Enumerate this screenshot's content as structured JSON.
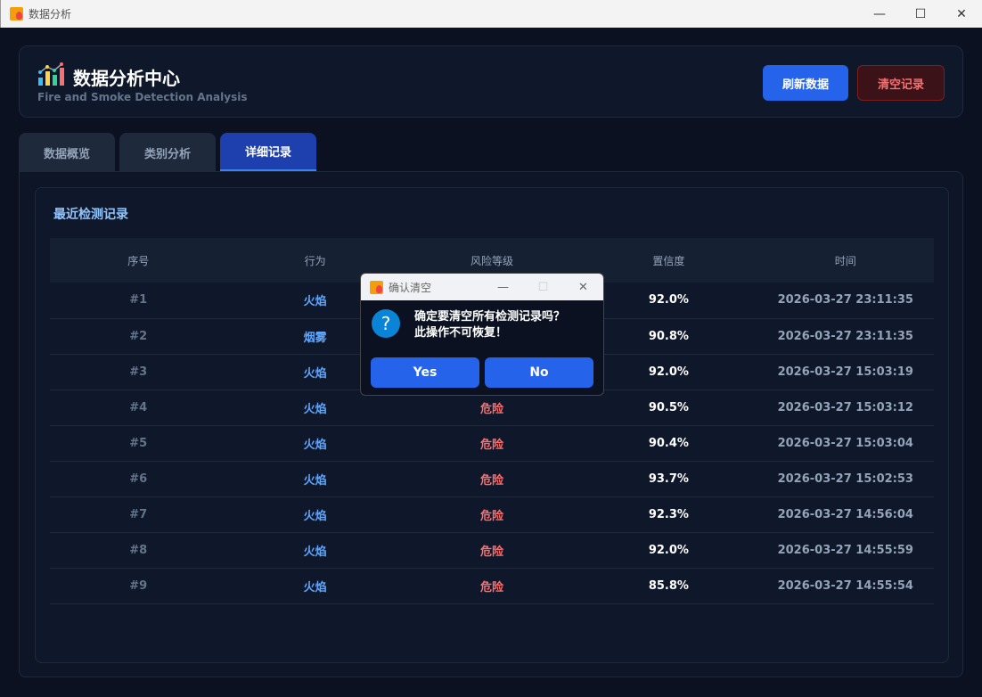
{
  "window": {
    "title": "数据分析",
    "minimize": "—",
    "maximize": "☐",
    "close": "✕"
  },
  "header": {
    "title": "数据分析中心",
    "subtitle": "Fire and Smoke Detection Analysis",
    "refresh_label": "刷新数据",
    "clear_label": "清空记录"
  },
  "tabs": [
    {
      "label": "数据概览"
    },
    {
      "label": "类别分析"
    },
    {
      "label": "详细记录",
      "active": true
    }
  ],
  "records": {
    "title": "最近检测记录",
    "columns": [
      "序号",
      "行为",
      "风险等级",
      "置信度",
      "时间"
    ],
    "rows": [
      [
        "#1",
        "火焰",
        "",
        "92.0%",
        "2026-03-27 23:11:35"
      ],
      [
        "#2",
        "烟雾",
        "",
        "90.8%",
        "2026-03-27 23:11:35"
      ],
      [
        "#3",
        "火焰",
        "",
        "92.0%",
        "2026-03-27 15:03:19"
      ],
      [
        "#4",
        "火焰",
        "危险",
        "90.5%",
        "2026-03-27 15:03:12"
      ],
      [
        "#5",
        "火焰",
        "危险",
        "90.4%",
        "2026-03-27 15:03:04"
      ],
      [
        "#6",
        "火焰",
        "危险",
        "93.7%",
        "2026-03-27 15:02:53"
      ],
      [
        "#7",
        "火焰",
        "危险",
        "92.3%",
        "2026-03-27 14:56:04"
      ],
      [
        "#8",
        "火焰",
        "危险",
        "92.0%",
        "2026-03-27 14:55:59"
      ],
      [
        "#9",
        "火焰",
        "危险",
        "85.8%",
        "2026-03-27 14:55:54"
      ]
    ]
  },
  "dialog": {
    "title": "确认清空",
    "icon": "question-icon",
    "line1": "确定要清空所有检测记录吗？",
    "line2": "此操作不可恢复！",
    "yes": "Yes",
    "no": "No"
  },
  "colors": {
    "accent": "#2563eb",
    "danger": "#f87171",
    "behavior": "#60a5fa"
  }
}
